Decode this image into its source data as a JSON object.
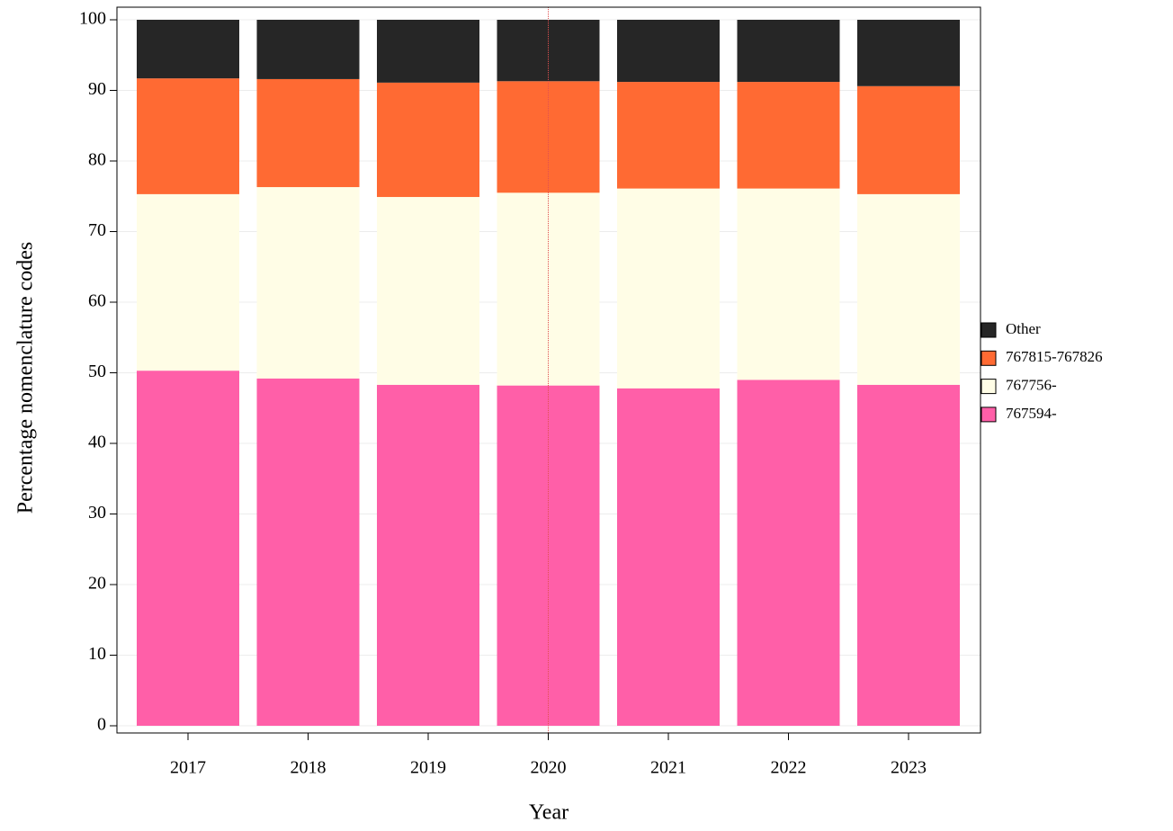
{
  "chart_data": {
    "type": "stacked-bar",
    "x_label": "Year",
    "y_label": "Percentage nomenclature codes",
    "categories": [
      "2017",
      "2018",
      "2019",
      "2020",
      "2021",
      "2022",
      "2023"
    ],
    "series": [
      {
        "name": "767594-",
        "color": "#ff5fa8",
        "values": [
          50.3,
          49.2,
          48.3,
          48.2,
          47.8,
          49.0,
          48.3
        ]
      },
      {
        "name": "767756-",
        "color": "#fffde6",
        "values": [
          25.0,
          27.1,
          26.6,
          27.3,
          28.3,
          27.1,
          27.0
        ]
      },
      {
        "name": "767815-767826",
        "color": "#ff6a33",
        "values": [
          16.4,
          15.3,
          16.2,
          15.8,
          15.1,
          15.1,
          15.3
        ]
      },
      {
        "name": "Other",
        "color": "#262626",
        "values": [
          8.3,
          8.4,
          8.9,
          8.7,
          8.8,
          8.8,
          9.4
        ]
      }
    ],
    "ylim": [
      0,
      100
    ],
    "yticks": [
      0,
      10,
      20,
      30,
      40,
      50,
      60,
      70,
      80,
      90,
      100
    ],
    "grid": true,
    "legend": "right",
    "reference_line": {
      "category": "2020",
      "color": "#e05050"
    }
  }
}
